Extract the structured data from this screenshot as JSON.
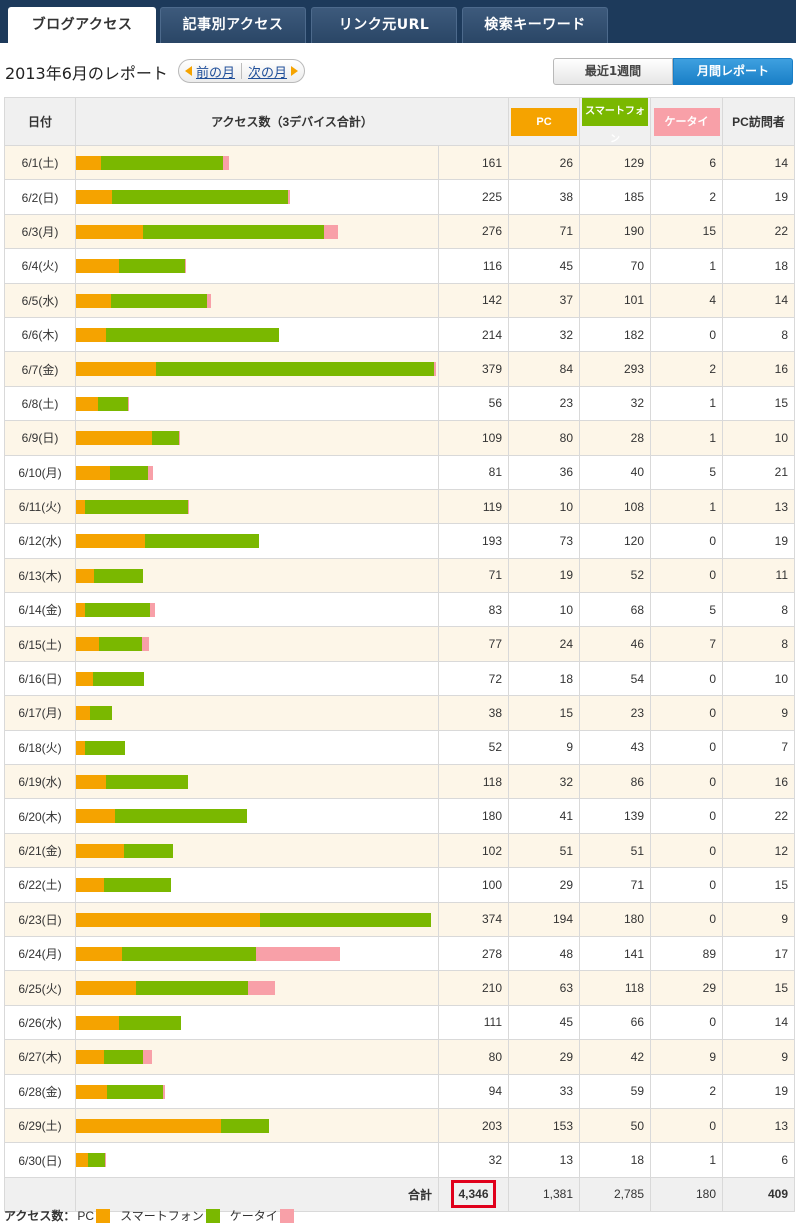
{
  "tabs": [
    {
      "label": "ブログアクセス",
      "active": true
    },
    {
      "label": "記事別アクセス",
      "active": false
    },
    {
      "label": "リンク元URL",
      "active": false
    },
    {
      "label": "検索キーワード",
      "active": false
    }
  ],
  "report_title": "2013年6月のレポート",
  "nav": {
    "prev": "前の月",
    "next": "次の月"
  },
  "view_toggle": {
    "week": "最近1週間",
    "month": "月間レポート",
    "selected": "month"
  },
  "colors": {
    "pc": "#f5a300",
    "smartphone": "#7ab800",
    "keitai": "#f8a0a8"
  },
  "table": {
    "headers": {
      "date": "日付",
      "access": "アクセス数（3デバイス合計）",
      "pc": "PC",
      "smartphone": "スマートフォン",
      "keitai": "ケータイ",
      "visitors": "PC訪問者"
    },
    "rows": [
      {
        "date": "6/1(土)",
        "total": 161,
        "pc": 26,
        "sp": 129,
        "kt": 6,
        "visitors": 14
      },
      {
        "date": "6/2(日)",
        "total": 225,
        "pc": 38,
        "sp": 185,
        "kt": 2,
        "visitors": 19
      },
      {
        "date": "6/3(月)",
        "total": 276,
        "pc": 71,
        "sp": 190,
        "kt": 15,
        "visitors": 22
      },
      {
        "date": "6/4(火)",
        "total": 116,
        "pc": 45,
        "sp": 70,
        "kt": 1,
        "visitors": 18
      },
      {
        "date": "6/5(水)",
        "total": 142,
        "pc": 37,
        "sp": 101,
        "kt": 4,
        "visitors": 14
      },
      {
        "date": "6/6(木)",
        "total": 214,
        "pc": 32,
        "sp": 182,
        "kt": 0,
        "visitors": 8
      },
      {
        "date": "6/7(金)",
        "total": 379,
        "pc": 84,
        "sp": 293,
        "kt": 2,
        "visitors": 16
      },
      {
        "date": "6/8(土)",
        "total": 56,
        "pc": 23,
        "sp": 32,
        "kt": 1,
        "visitors": 15
      },
      {
        "date": "6/9(日)",
        "total": 109,
        "pc": 80,
        "sp": 28,
        "kt": 1,
        "visitors": 10
      },
      {
        "date": "6/10(月)",
        "total": 81,
        "pc": 36,
        "sp": 40,
        "kt": 5,
        "visitors": 21
      },
      {
        "date": "6/11(火)",
        "total": 119,
        "pc": 10,
        "sp": 108,
        "kt": 1,
        "visitors": 13
      },
      {
        "date": "6/12(水)",
        "total": 193,
        "pc": 73,
        "sp": 120,
        "kt": 0,
        "visitors": 19
      },
      {
        "date": "6/13(木)",
        "total": 71,
        "pc": 19,
        "sp": 52,
        "kt": 0,
        "visitors": 11
      },
      {
        "date": "6/14(金)",
        "total": 83,
        "pc": 10,
        "sp": 68,
        "kt": 5,
        "visitors": 8
      },
      {
        "date": "6/15(土)",
        "total": 77,
        "pc": 24,
        "sp": 46,
        "kt": 7,
        "visitors": 8
      },
      {
        "date": "6/16(日)",
        "total": 72,
        "pc": 18,
        "sp": 54,
        "kt": 0,
        "visitors": 10
      },
      {
        "date": "6/17(月)",
        "total": 38,
        "pc": 15,
        "sp": 23,
        "kt": 0,
        "visitors": 9
      },
      {
        "date": "6/18(火)",
        "total": 52,
        "pc": 9,
        "sp": 43,
        "kt": 0,
        "visitors": 7
      },
      {
        "date": "6/19(水)",
        "total": 118,
        "pc": 32,
        "sp": 86,
        "kt": 0,
        "visitors": 16
      },
      {
        "date": "6/20(木)",
        "total": 180,
        "pc": 41,
        "sp": 139,
        "kt": 0,
        "visitors": 22
      },
      {
        "date": "6/21(金)",
        "total": 102,
        "pc": 51,
        "sp": 51,
        "kt": 0,
        "visitors": 12
      },
      {
        "date": "6/22(土)",
        "total": 100,
        "pc": 29,
        "sp": 71,
        "kt": 0,
        "visitors": 15
      },
      {
        "date": "6/23(日)",
        "total": 374,
        "pc": 194,
        "sp": 180,
        "kt": 0,
        "visitors": 9
      },
      {
        "date": "6/24(月)",
        "total": 278,
        "pc": 48,
        "sp": 141,
        "kt": 89,
        "visitors": 17
      },
      {
        "date": "6/25(火)",
        "total": 210,
        "pc": 63,
        "sp": 118,
        "kt": 29,
        "visitors": 15
      },
      {
        "date": "6/26(水)",
        "total": 111,
        "pc": 45,
        "sp": 66,
        "kt": 0,
        "visitors": 14
      },
      {
        "date": "6/27(木)",
        "total": 80,
        "pc": 29,
        "sp": 42,
        "kt": 9,
        "visitors": 9
      },
      {
        "date": "6/28(金)",
        "total": 94,
        "pc": 33,
        "sp": 59,
        "kt": 2,
        "visitors": 19
      },
      {
        "date": "6/29(土)",
        "total": 203,
        "pc": 153,
        "sp": 50,
        "kt": 0,
        "visitors": 13
      },
      {
        "date": "6/30(日)",
        "total": 32,
        "pc": 13,
        "sp": 18,
        "kt": 1,
        "visitors": 6
      }
    ],
    "totals": {
      "label": "合計",
      "total": "4,346",
      "pc": "1,381",
      "sp": "2,785",
      "kt": "180",
      "visitors": "409"
    }
  },
  "legend": {
    "label": "アクセス数：",
    "pc": "PC",
    "smartphone": "スマートフォン",
    "keitai": "ケータイ"
  }
}
